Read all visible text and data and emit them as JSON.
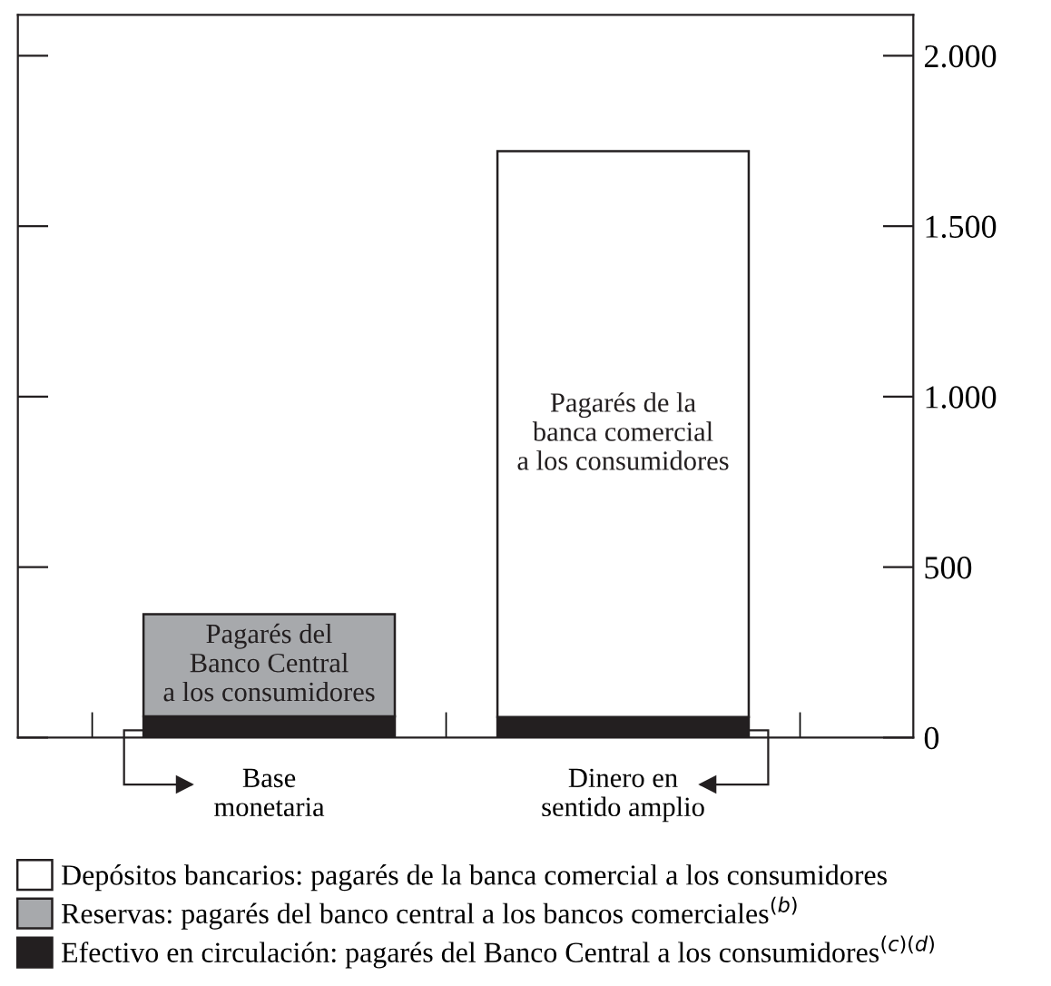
{
  "chart_data": {
    "type": "bar",
    "stacked": true,
    "categories": [
      "Base\nmonetaria",
      "Dinero en\nsentido amplio"
    ],
    "series": [
      {
        "name": "Efectivo en circulación: pagarés del Banco Central a los consumidores$^{(c)(d)}$",
        "color": "#231f20",
        "values": [
          62,
          60
        ]
      },
      {
        "name": "Reservas: pagarés del banco central a los bancos comerciales$^{(b)}$",
        "color": "#a7a9ac",
        "values": [
          300,
          null
        ]
      },
      {
        "name": "Depósitos bancarios: pagarés de la banca comercial a los consumidores",
        "color": "#ffffff",
        "values": [
          null,
          1660
        ]
      }
    ],
    "ylim": [
      0,
      2120
    ],
    "yticks": [
      0,
      {
        "value": 500,
        "label": "500"
      },
      {
        "value": 1000,
        "label": "1.000"
      },
      {
        "value": 1500,
        "label": "1.500"
      },
      {
        "value": 2000,
        "label": "2.000"
      }
    ],
    "annotations": [
      "Pagarés del\nBanco Central\na los consumidores",
      "Pagarés de la\nbanca comercial\na los consumidores"
    ],
    "legend": "bottom",
    "grid": false
  }
}
